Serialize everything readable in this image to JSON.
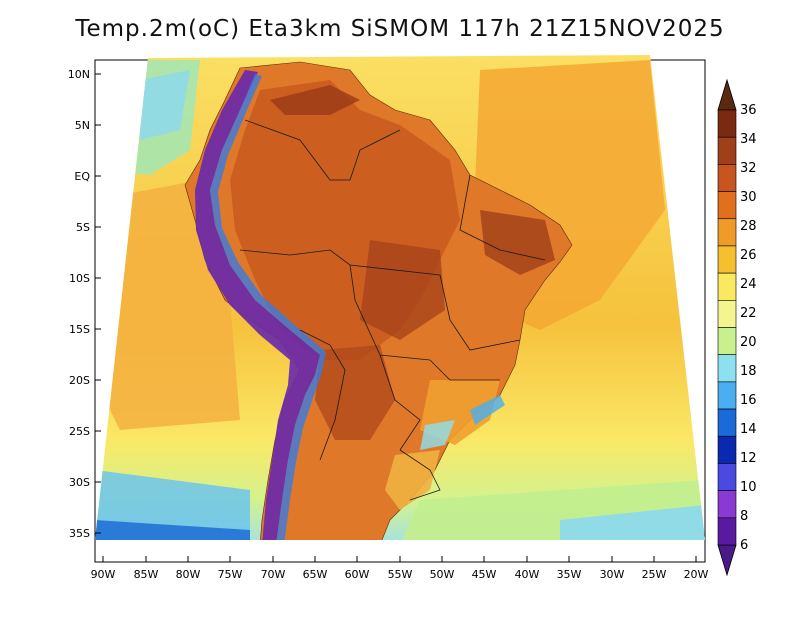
{
  "title": "Temp.2m(oC) Eta3km SiSMOM 117h 21Z15NOV2025",
  "lat_labels": [
    "10N",
    "5N",
    "EQ",
    "5S",
    "10S",
    "15S",
    "20S",
    "25S",
    "30S",
    "35S"
  ],
  "lon_labels": [
    "90W",
    "85W",
    "80W",
    "75W",
    "70W",
    "65W",
    "60W",
    "55W",
    "50W",
    "45W",
    "40W",
    "35W",
    "30W",
    "25W",
    "20W"
  ],
  "colorbar": {
    "labels": [
      "36",
      "34",
      "32",
      "30",
      "28",
      "26",
      "24",
      "22",
      "20",
      "18",
      "16",
      "14",
      "12",
      "10",
      "8",
      "6"
    ],
    "colors": [
      "#7a2a10",
      "#a0401a",
      "#c8541e",
      "#e0701e",
      "#f09a28",
      "#f5c030",
      "#fae860",
      "#f5f590",
      "#c8f08c",
      "#8ce0f0",
      "#4aaef0",
      "#1a6ad8",
      "#0a28b0",
      "#4a4ae0",
      "#8a3ad0",
      "#5a1aa0"
    ]
  },
  "palette": {
    "ocean_warm": "#f4b034",
    "ocean_mid": "#fae064",
    "ocean_cool": "#d7f590",
    "ocean_cold": "#8cd8f0",
    "land_hot": "#d06020",
    "land_warm": "#e88a30",
    "andes": "#6a2aa8",
    "andes_edge": "#3a7ae0"
  }
}
